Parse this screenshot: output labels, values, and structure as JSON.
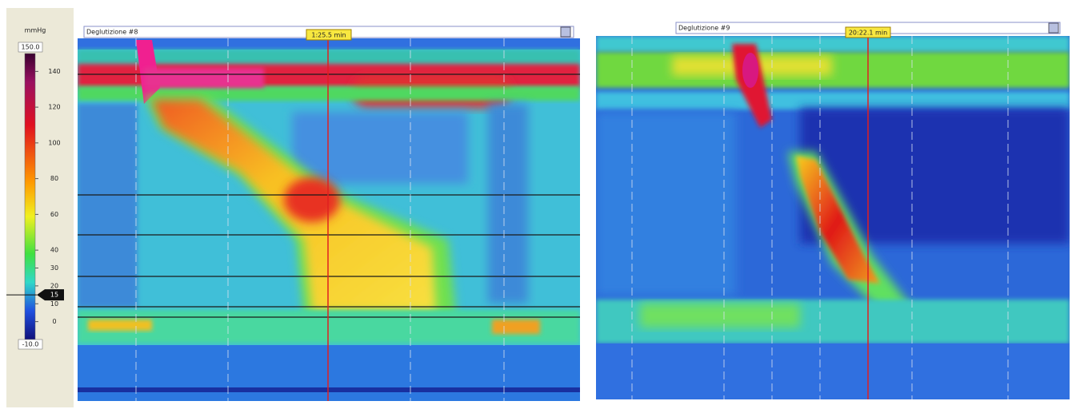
{
  "colorbar": {
    "unit": "mmHg",
    "limits": [
      {
        "value": 150,
        "label": "150.0"
      },
      {
        "value": -10,
        "label": "-10.0"
      }
    ],
    "ticks": [
      140,
      120,
      100,
      80,
      60,
      40,
      30,
      20,
      10,
      0
    ],
    "marker": 15
  },
  "panels": [
    {
      "title": "Deglutizione #8",
      "time": "1:25.5 min"
    },
    {
      "title": "Deglutizione #9",
      "time": "20:22.1 min"
    }
  ]
}
